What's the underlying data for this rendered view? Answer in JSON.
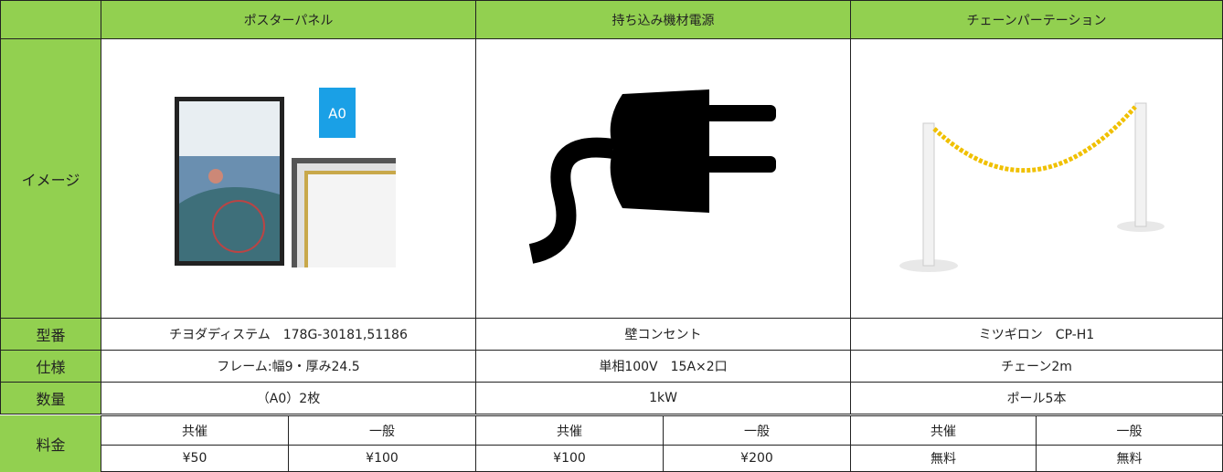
{
  "table": {
    "columns": [
      "ポスターパネル",
      "持ち込み機材電源",
      "チェーンパーテーション"
    ],
    "image_label": "イメージ",
    "poster_badge": "A0",
    "rows": [
      {
        "label": "型番",
        "cells": [
          "チヨダディステム　178G-30181,51186",
          "壁コンセント",
          "ミツギロン　CP-H1"
        ]
      },
      {
        "label": "仕様",
        "cells": [
          "フレーム:幅9・厚み24.5",
          "単相100V　15A×2口",
          "チェーン2m"
        ]
      },
      {
        "label": "数量",
        "cells": [
          "（A0）2枚",
          "1kW",
          "ポール5本"
        ]
      }
    ],
    "price": {
      "label": "料金",
      "groups": [
        {
          "headers": [
            "共催",
            "一般"
          ],
          "values": [
            "¥50",
            "¥100"
          ]
        },
        {
          "headers": [
            "共催",
            "一般"
          ],
          "values": [
            "¥100",
            "¥200"
          ]
        },
        {
          "headers": [
            "共催",
            "一般"
          ],
          "values": [
            "無料",
            "無料"
          ]
        }
      ]
    }
  }
}
